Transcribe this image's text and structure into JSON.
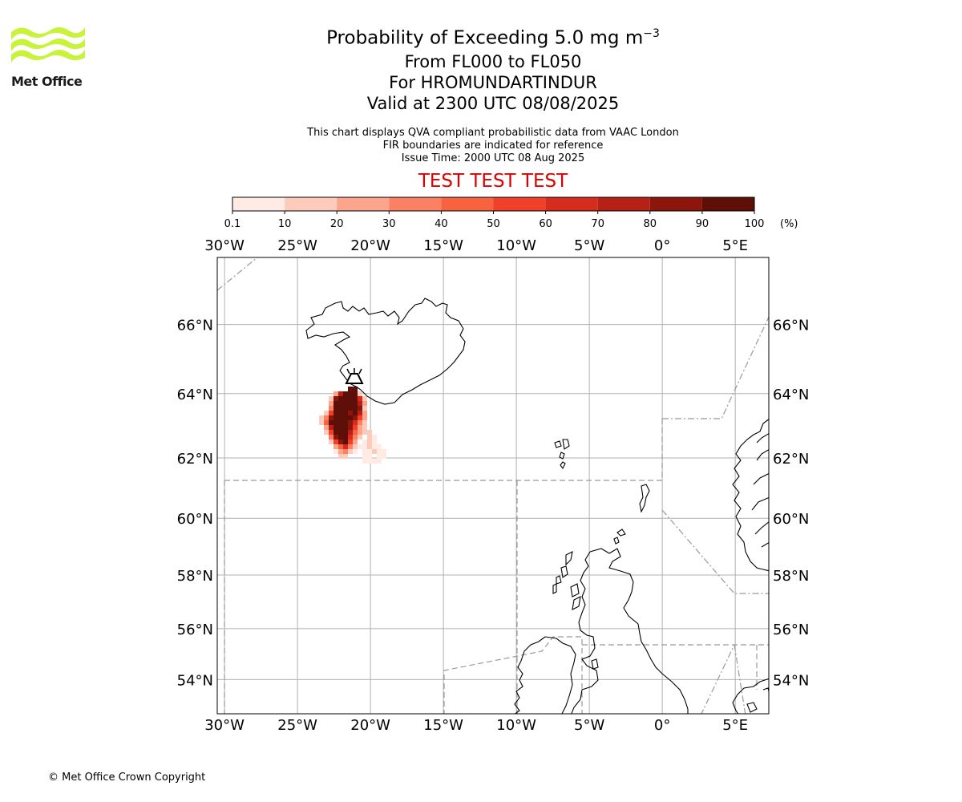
{
  "logo": {
    "text": "Met Office",
    "colors": {
      "waves": "#c9f23a",
      "text": "#1a1a1a"
    }
  },
  "title": {
    "main": "Probability of Exceeding 5.0 mg m",
    "main_sup": "−3",
    "line2": "From FL000 to FL050",
    "line3": "For HROMUNDARTINDUR",
    "line4": "Valid at 2300 UTC 08/08/2025"
  },
  "subtitle": {
    "line1": "This chart displays QVA compliant probabilistic data from VAAC London",
    "line2": "FIR boundaries are indicated for reference",
    "line3": "Issue Time: 2000 UTC 08 Aug 2025"
  },
  "test_banner": "TEST TEST TEST",
  "colorbar": {
    "ticks": [
      "0.1",
      "10",
      "20",
      "30",
      "40",
      "50",
      "60",
      "70",
      "80",
      "90",
      "100"
    ],
    "unit": "(%)",
    "colors": [
      "#ffebe4",
      "#fdcbbb",
      "#fca48c",
      "#fb8064",
      "#f8633f",
      "#f0402a",
      "#d42d1e",
      "#b52114",
      "#8d160c",
      "#5e0f07"
    ]
  },
  "map": {
    "lon_labels": [
      "30°W",
      "25°W",
      "20°W",
      "15°W",
      "10°W",
      "5°W",
      "0°",
      "5°E"
    ],
    "lat_labels": [
      "66°N",
      "64°N",
      "62°N",
      "60°N",
      "58°N",
      "56°N",
      "54°N"
    ],
    "lon_values": [
      -30,
      -25,
      -20,
      -15,
      -10,
      -5,
      0,
      5
    ],
    "lat_values": [
      66,
      64,
      62,
      60,
      58,
      56,
      54
    ],
    "extent": {
      "lon": [
        -30.5,
        7.3
      ],
      "lat": [
        52.6,
        67.8
      ]
    },
    "volcano": {
      "name": "HROMUNDARTINDUR",
      "lon": -21.2,
      "lat": 64.1
    },
    "colors": {
      "grid": "#b0b0b0",
      "coast": "#000000",
      "fir": "#999999"
    }
  },
  "copyright": "© Met Office Crown Copyright"
}
